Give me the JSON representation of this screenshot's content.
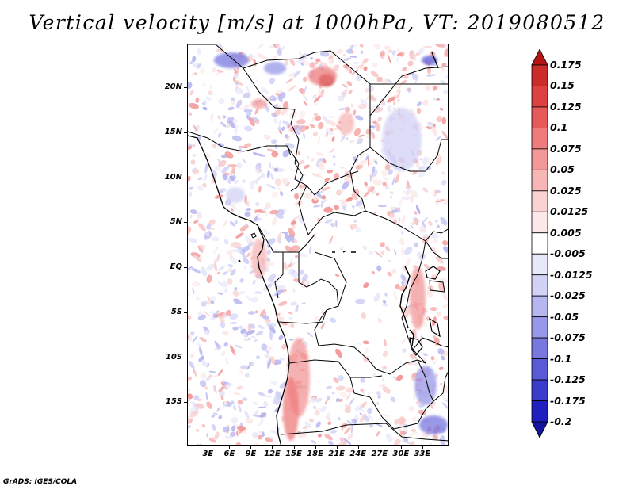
{
  "title": "Vertical velocity [m/s] at 1000hPa, VT: 2019080512",
  "footer": "GrADS: IGES/COLA",
  "map": {
    "lat_labels": [
      "20N",
      "15N",
      "10N",
      "5N",
      "EQ",
      "5S",
      "10S",
      "15S"
    ],
    "lon_labels": [
      "3E",
      "6E",
      "9E",
      "12E",
      "15E",
      "18E",
      "21E",
      "24E",
      "27E",
      "30E",
      "33E"
    ],
    "lat_values": [
      20,
      15,
      10,
      5,
      0,
      -5,
      -10,
      -15
    ],
    "lon_values": [
      3,
      6,
      9,
      12,
      15,
      18,
      21,
      24,
      27,
      30,
      33
    ],
    "field": "Vertical velocity",
    "units": "m/s",
    "level": "1000hPa",
    "valid_time": "2019080512"
  },
  "colorbar": {
    "levels": [
      "0.175",
      "0.15",
      "0.125",
      "0.1",
      "0.075",
      "0.05",
      "0.025",
      "0.0125",
      "0.005",
      "-0.005",
      "-0.0125",
      "-0.025",
      "-0.05",
      "-0.075",
      "-0.1",
      "-0.125",
      "-0.175",
      "-0.2"
    ],
    "colors": [
      "#b41414",
      "#cd2a2a",
      "#dc4040",
      "#e65a5a",
      "#ee7c7c",
      "#f29898",
      "#f6b6b6",
      "#f9d2d2",
      "#fce8e8",
      "#ffffff",
      "#e8e8fb",
      "#d2d2f6",
      "#b6b6f0",
      "#9898e8",
      "#7878e0",
      "#5a5ad6",
      "#3c3ccc",
      "#2020c0",
      "#14149e"
    ]
  }
}
